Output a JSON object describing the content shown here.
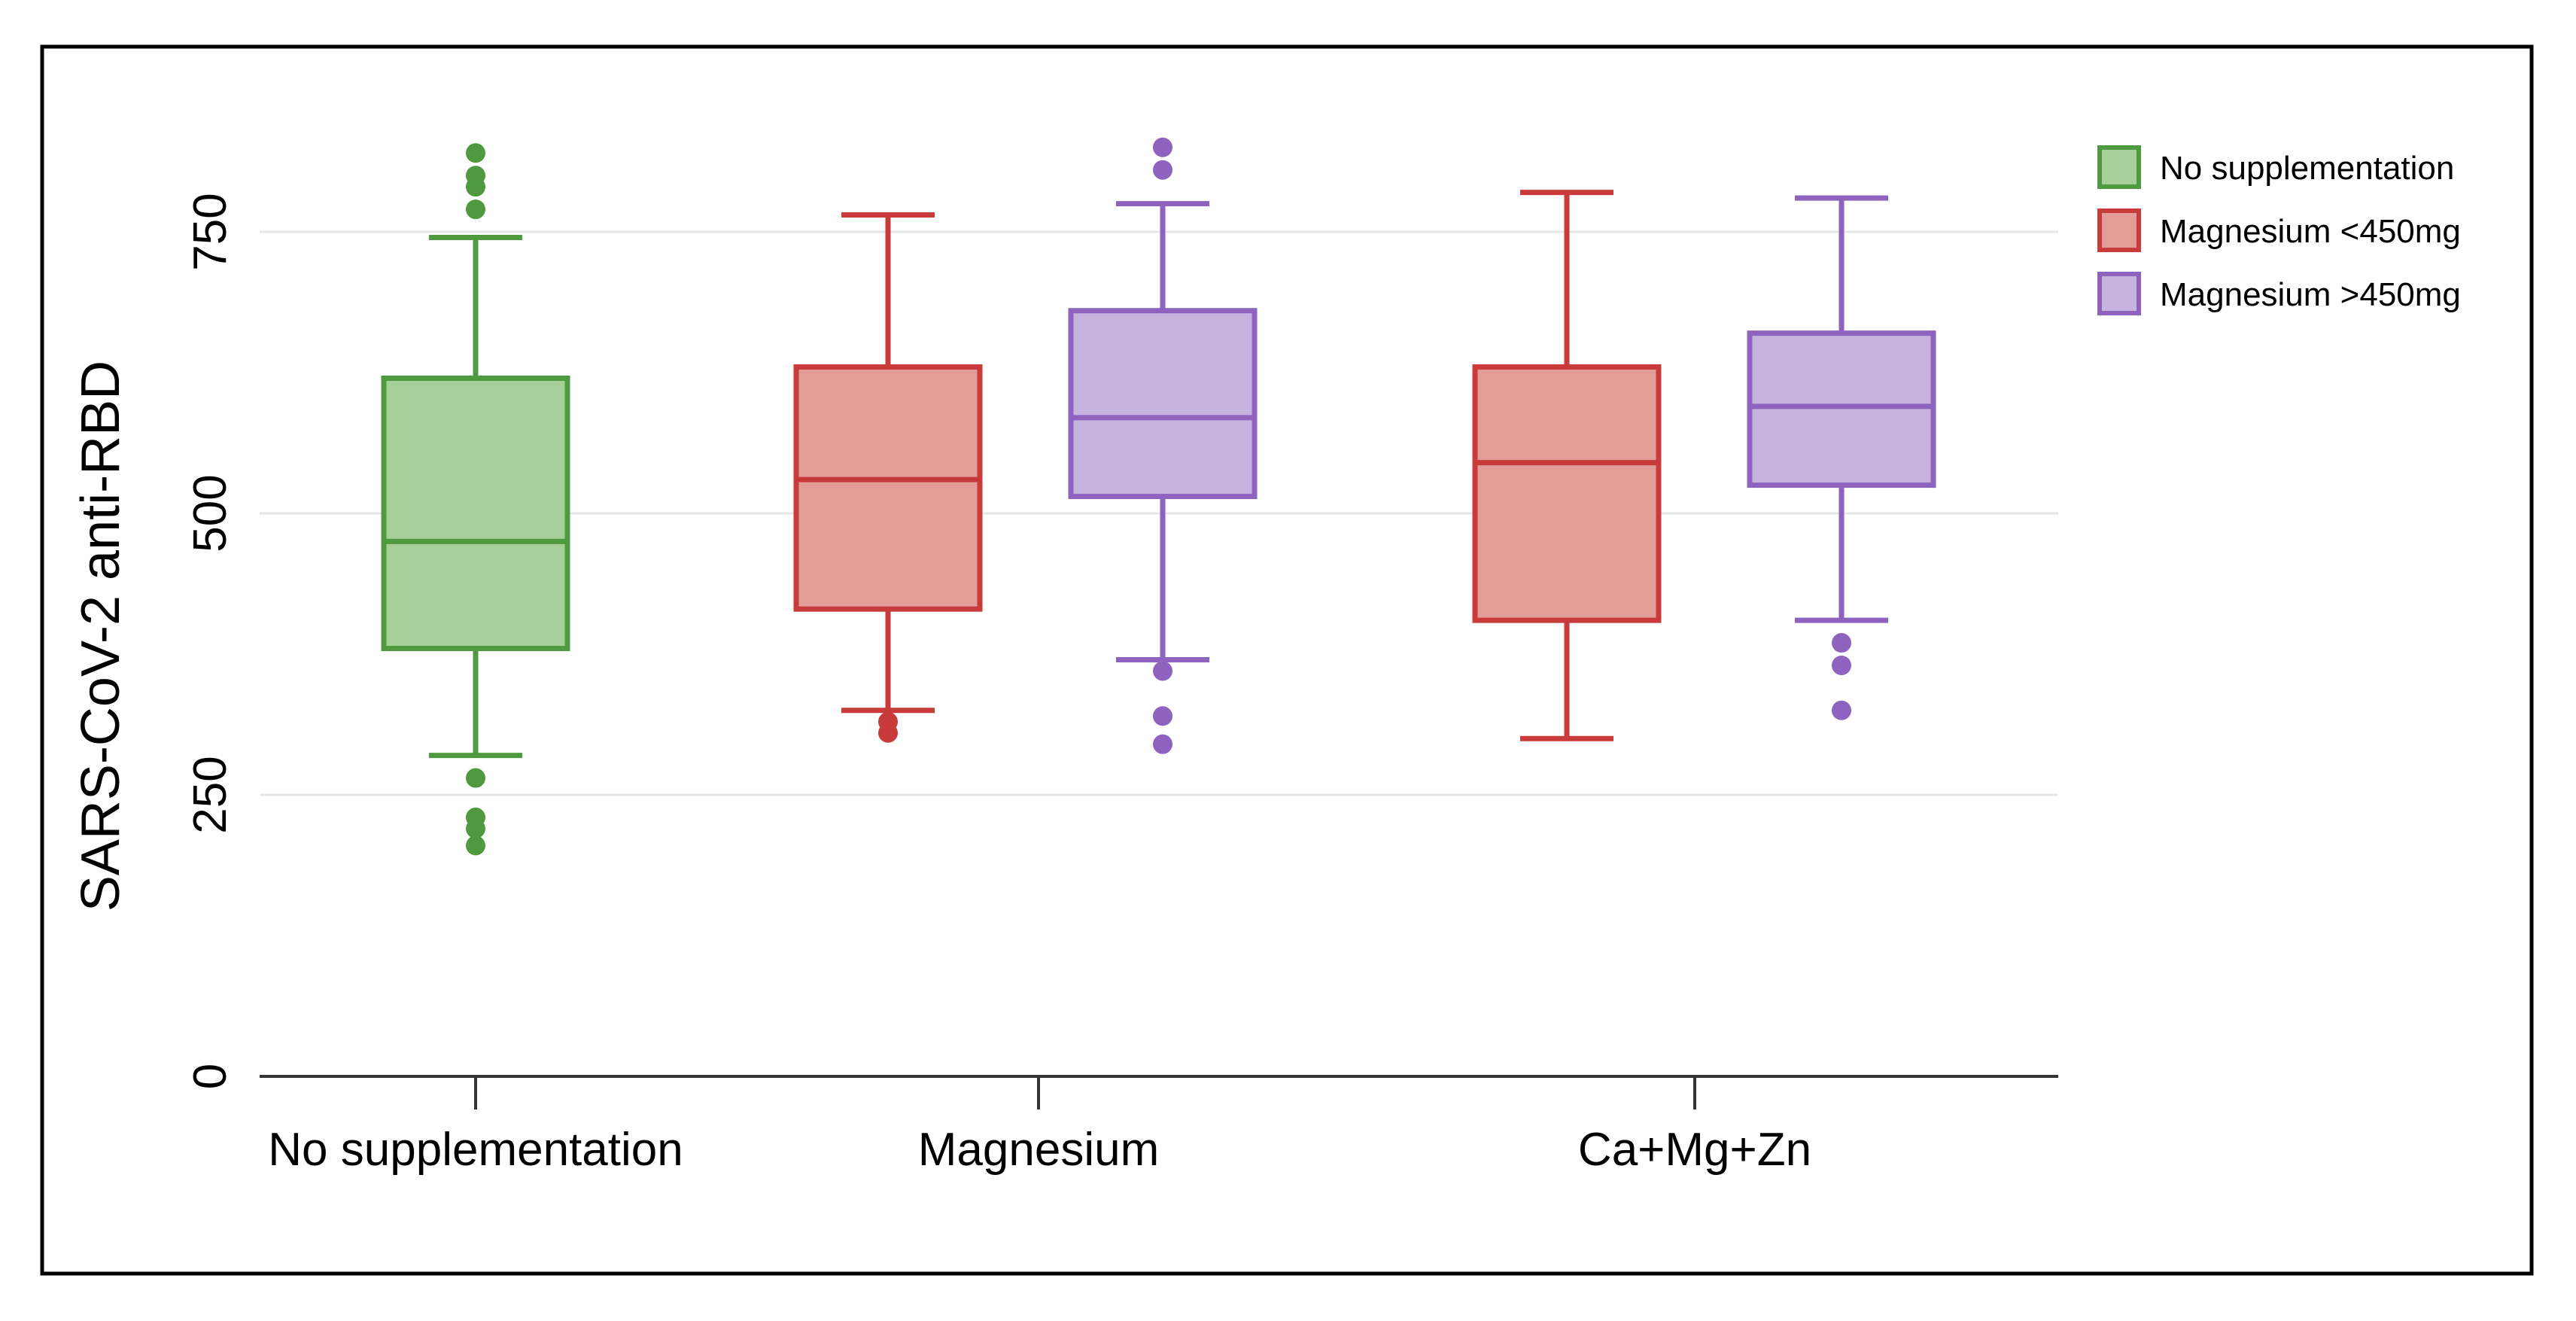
{
  "chart_data": {
    "type": "box",
    "title": "",
    "xlabel": "",
    "ylabel": "SARS-CoV-2 anti-RBD",
    "ylim": [
      0,
      850
    ],
    "yticks": [
      0,
      250,
      500,
      750
    ],
    "grid": true,
    "legend_position": "top-right",
    "categories": [
      "No supplementation",
      "Magnesium",
      "Ca+Mg+Zn"
    ],
    "series": [
      {
        "name": "No supplementation",
        "color": "#4f9a3f",
        "fill": "#a7cf99",
        "boxes": [
          {
            "category": "No supplementation",
            "whisker_low": 285,
            "q1": 380,
            "median": 475,
            "q3": 620,
            "whisker_high": 745,
            "outliers": [
              265,
              230,
              220,
              205,
              770,
              790,
              800,
              820
            ]
          }
        ]
      },
      {
        "name": "Magnesium <450mg",
        "color": "#c93b3b",
        "fill": "#e39d99",
        "boxes": [
          {
            "category": "Magnesium",
            "whisker_low": 325,
            "q1": 415,
            "median": 530,
            "q3": 630,
            "whisker_high": 765,
            "outliers": [
              315,
              305
            ]
          },
          {
            "category": "Ca+Mg+Zn",
            "whisker_low": 300,
            "q1": 405,
            "median": 545,
            "q3": 630,
            "whisker_high": 785,
            "outliers": []
          }
        ]
      },
      {
        "name": "Magnesium >450mg",
        "color": "#8e63c0",
        "fill": "#c6b3de",
        "boxes": [
          {
            "category": "Magnesium",
            "whisker_low": 370,
            "q1": 515,
            "median": 585,
            "q3": 680,
            "whisker_high": 775,
            "outliers": [
              360,
              320,
              295,
              805,
              825
            ]
          },
          {
            "category": "Ca+Mg+Zn",
            "whisker_low": 405,
            "q1": 525,
            "median": 595,
            "q3": 660,
            "whisker_high": 780,
            "outliers": [
              385,
              365,
              325
            ]
          }
        ]
      }
    ],
    "legend": [
      "No supplementation",
      "Magnesium <450mg",
      "Magnesium >450mg"
    ]
  }
}
